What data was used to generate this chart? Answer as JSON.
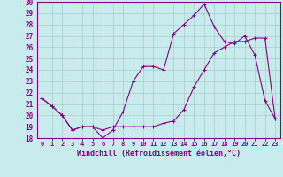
{
  "xlabel": "Windchill (Refroidissement éolien,°C)",
  "ylabel": "",
  "background_color": "#c8ecec",
  "line_color": "#880088",
  "grid_color": "#aacccc",
  "xlim": [
    -0.5,
    23.5
  ],
  "ylim": [
    18,
    30
  ],
  "xticks": [
    0,
    1,
    2,
    3,
    4,
    5,
    6,
    7,
    8,
    9,
    10,
    11,
    12,
    13,
    14,
    15,
    16,
    17,
    18,
    19,
    20,
    21,
    22,
    23
  ],
  "yticks": [
    18,
    19,
    20,
    21,
    22,
    23,
    24,
    25,
    26,
    27,
    28,
    29,
    30
  ],
  "series1_x": [
    0,
    1,
    2,
    3,
    4,
    5,
    6,
    7,
    8,
    9,
    10,
    11,
    12,
    13,
    14,
    15,
    16,
    17,
    18,
    19,
    20,
    21,
    22,
    23
  ],
  "series1_y": [
    21.5,
    20.8,
    20.0,
    18.7,
    19.0,
    19.0,
    18.0,
    18.7,
    20.3,
    23.0,
    24.3,
    24.3,
    24.0,
    27.2,
    28.0,
    28.8,
    29.8,
    27.8,
    26.5,
    26.3,
    27.0,
    25.3,
    21.3,
    19.7
  ],
  "series2_x": [
    0,
    1,
    2,
    3,
    4,
    5,
    6,
    7,
    8,
    9,
    10,
    11,
    12,
    13,
    14,
    15,
    16,
    17,
    18,
    19,
    20,
    21,
    22,
    23
  ],
  "series2_y": [
    21.5,
    20.8,
    20.0,
    18.7,
    19.0,
    19.0,
    18.7,
    19.0,
    19.0,
    19.0,
    19.0,
    19.0,
    19.3,
    19.5,
    20.5,
    22.5,
    24.0,
    25.5,
    26.0,
    26.5,
    26.5,
    26.8,
    26.8,
    19.7
  ]
}
